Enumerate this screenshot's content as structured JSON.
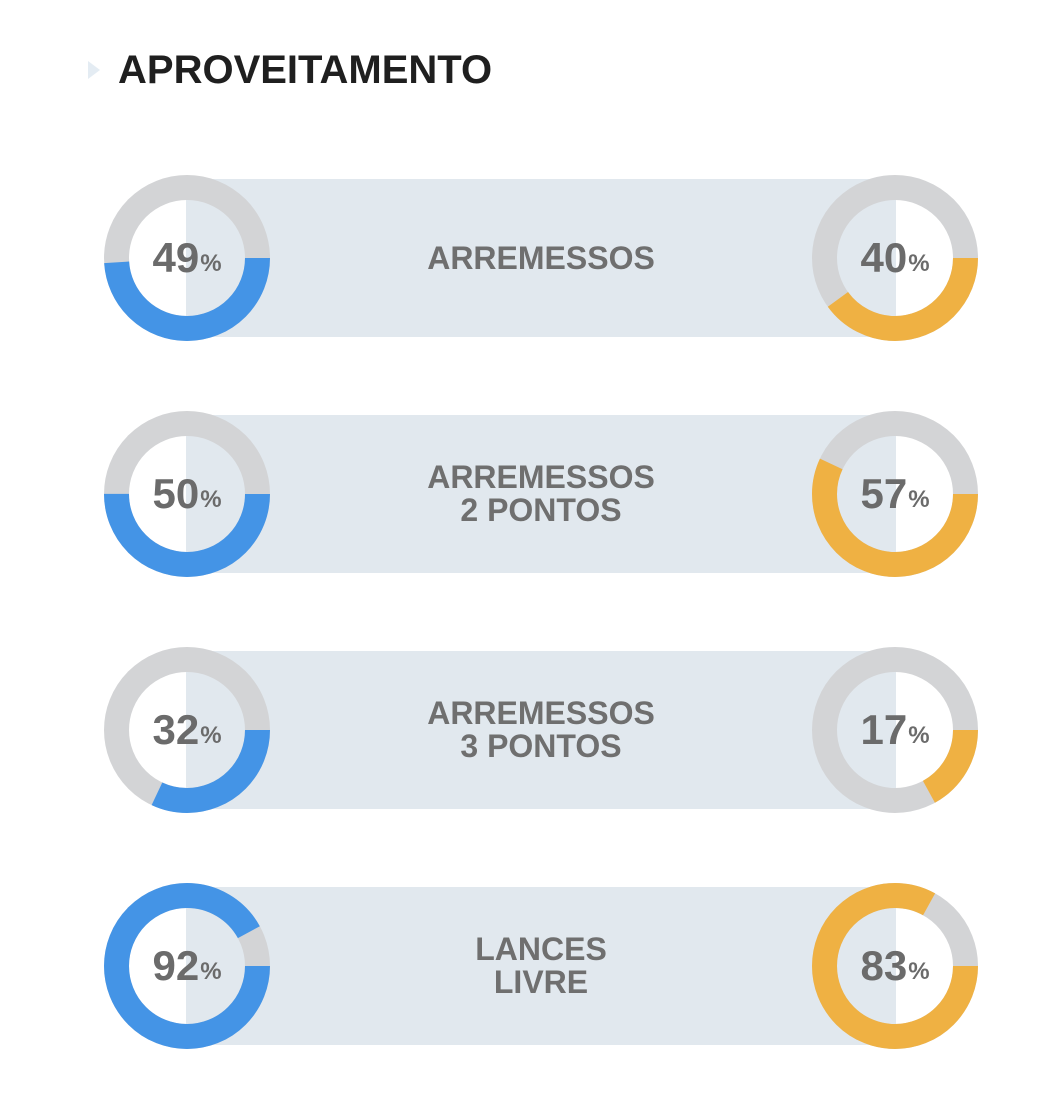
{
  "header": {
    "title": "APROVEITAMENTO"
  },
  "colors": {
    "team_a": "#4494e6",
    "team_b": "#efb143",
    "track": "#d3d4d6",
    "band": "#e1e8ee",
    "text": "#6b6b6b"
  },
  "chart_data": {
    "type": "pie",
    "percent_symbol": "%",
    "stats": [
      {
        "label": "ARREMESSOS",
        "team_a": 49,
        "team_b": 40
      },
      {
        "label": "ARREMESSOS\n2 PONTOS",
        "team_a": 50,
        "team_b": 57
      },
      {
        "label": "ARREMESSOS\n3 PONTOS",
        "team_a": 32,
        "team_b": 17
      },
      {
        "label": "LANCES\nLIVRE",
        "team_a": 92,
        "team_b": 83
      }
    ]
  }
}
